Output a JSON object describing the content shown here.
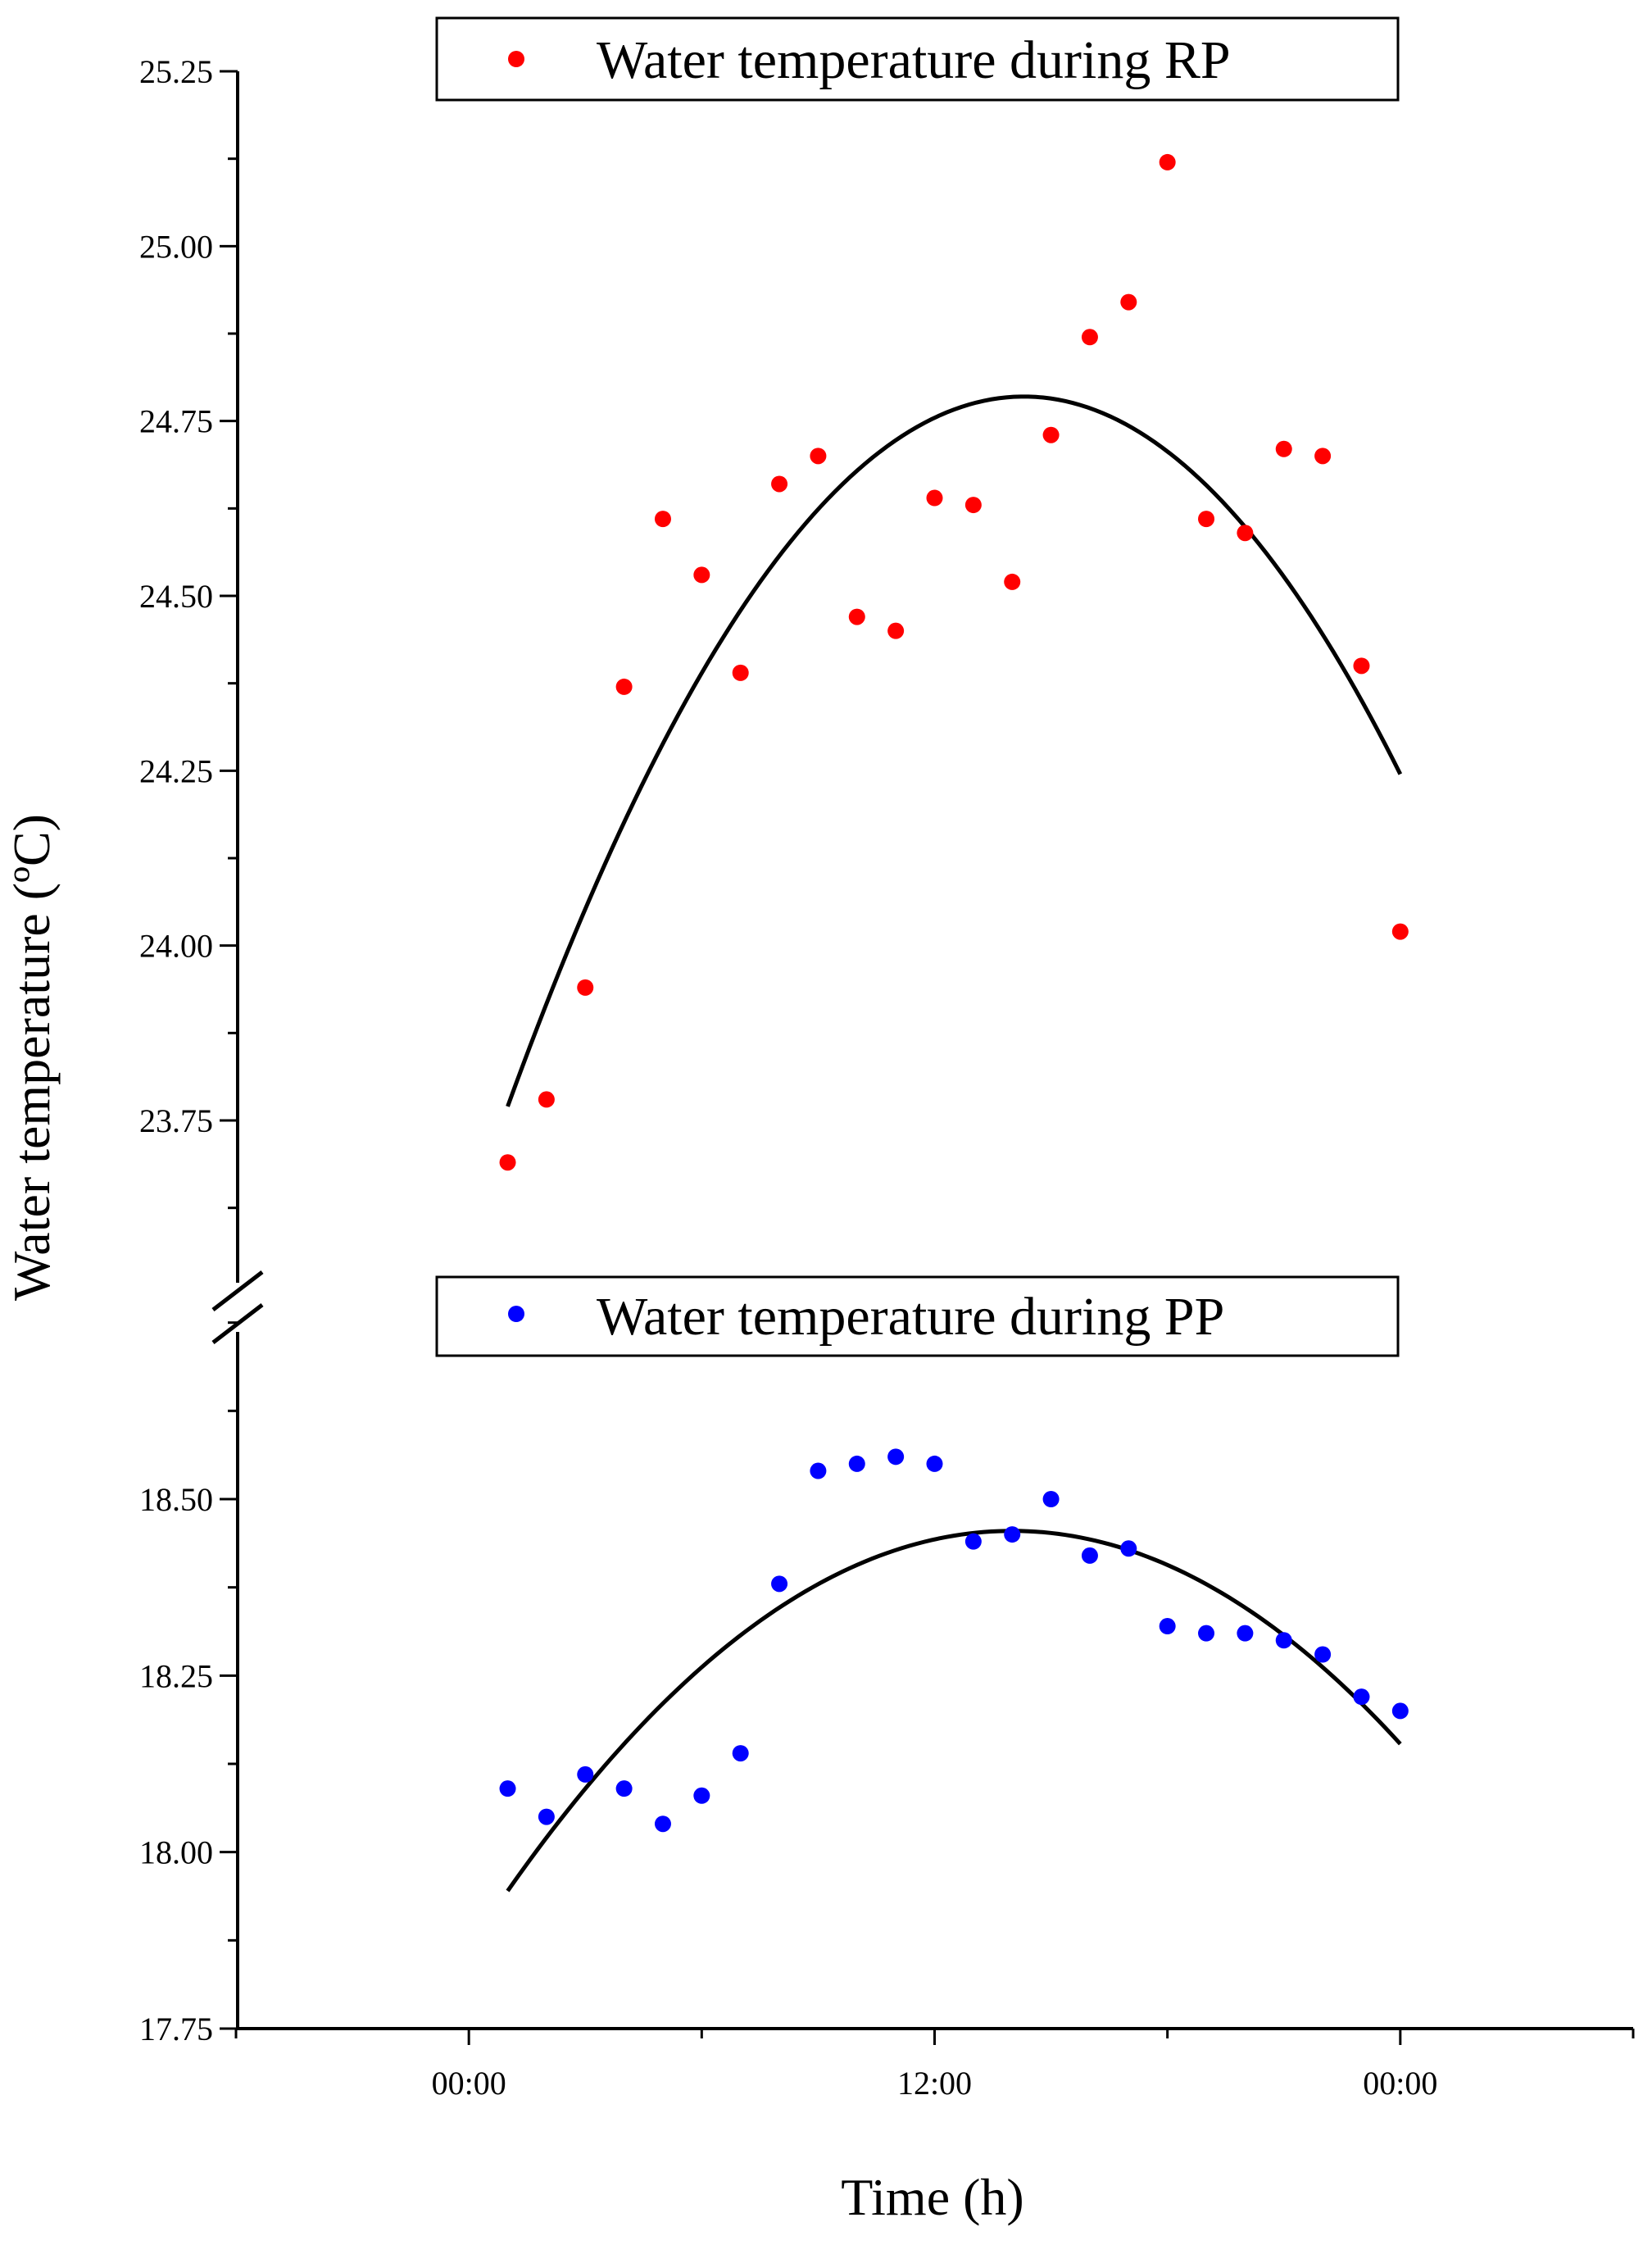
{
  "chart_data": {
    "type": "scatter",
    "title": "",
    "xlabel": "Time (h)",
    "ylabel": "Water temperature (ºC)",
    "x_unit": "hours (0 = first 00:00 tick)",
    "xlim": [
      -6,
      30
    ],
    "x_ticks": [
      0,
      12,
      24
    ],
    "x_tick_labels": [
      "00:00",
      "12:00",
      "00:00"
    ],
    "grid": false,
    "broken_y_axis": true,
    "panels": [
      {
        "id": "rp",
        "legend": "Water temperature during RP",
        "legend_position": "top-center",
        "color": "#ff0000",
        "ylim": [
          23.5,
          25.25
        ],
        "y_ticks": [
          23.75,
          24.0,
          24.25,
          24.5,
          24.75,
          25.0,
          25.25
        ],
        "y_tick_labels": [
          "23.75",
          "24.00",
          "24.25",
          "24.50",
          "24.75",
          "25.00",
          "25.25"
        ],
        "x": [
          1,
          2,
          3,
          4,
          5,
          6,
          7,
          8,
          9,
          10,
          11,
          12,
          13,
          14,
          15,
          16,
          17,
          18,
          19,
          20,
          21,
          22,
          23,
          24
        ],
        "values": [
          23.69,
          23.78,
          23.94,
          24.37,
          24.61,
          24.53,
          24.39,
          24.66,
          24.7,
          24.47,
          24.45,
          24.64,
          24.63,
          24.52,
          24.73,
          24.87,
          24.92,
          25.12,
          24.61,
          24.59,
          24.71,
          24.7,
          24.4,
          24.02
        ],
        "fit": {
          "type": "quadratic",
          "x_range": [
            1,
            24
          ],
          "vertex_x": 14.3,
          "vertex_y": 24.785,
          "y_at_start": 23.77,
          "color": "#000000"
        }
      },
      {
        "id": "pp",
        "legend": "Water temperature during PP",
        "legend_position": "top-center",
        "color": "#0000ff",
        "ylim": [
          17.75,
          18.75
        ],
        "y_ticks": [
          17.75,
          18.0,
          18.25,
          18.5
        ],
        "y_tick_labels": [
          "17.75",
          "18.00",
          "18.25",
          "18.50"
        ],
        "x": [
          1,
          2,
          3,
          4,
          5,
          6,
          7,
          8,
          9,
          10,
          11,
          12,
          13,
          14,
          15,
          16,
          17,
          18,
          19,
          20,
          21,
          22,
          23,
          24
        ],
        "values": [
          18.09,
          18.05,
          18.11,
          18.09,
          18.04,
          18.08,
          18.14,
          18.38,
          18.54,
          18.55,
          18.56,
          18.55,
          18.44,
          18.45,
          18.5,
          18.42,
          18.43,
          18.32,
          18.31,
          18.31,
          18.3,
          18.28,
          18.22,
          18.2
        ],
        "fit": {
          "type": "quadratic",
          "x_range": [
            1,
            24
          ],
          "vertex_x": 14.0,
          "vertex_y": 18.455,
          "y_at_start": 17.945,
          "color": "#000000"
        }
      }
    ]
  }
}
